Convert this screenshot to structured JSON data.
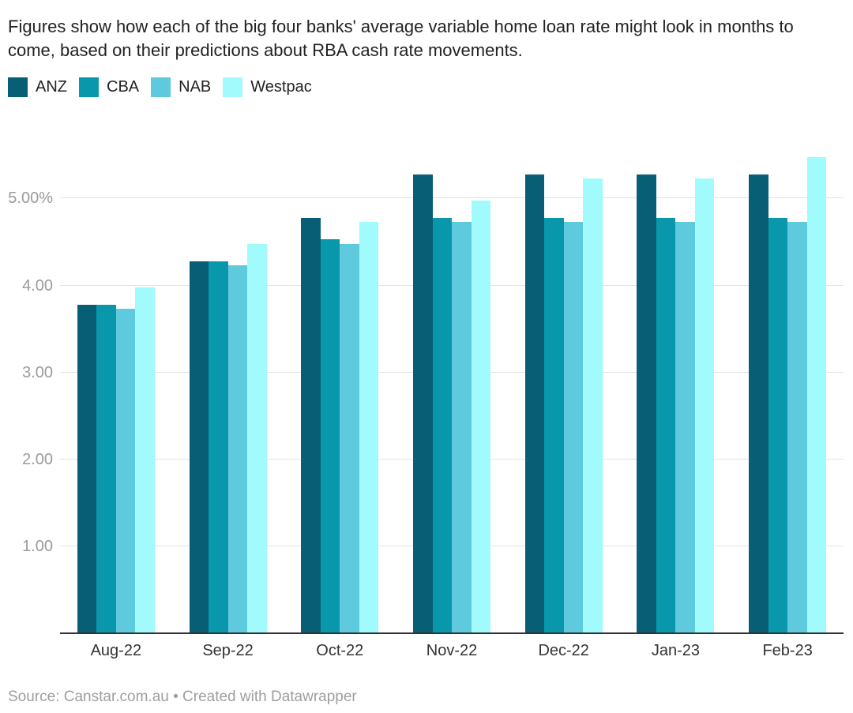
{
  "header": {
    "title": "Figures show how each of the big four banks' average variable home loan rate might look in months to come, based on their predictions about RBA cash rate movements."
  },
  "footer": {
    "source": "Source: Canstar.com.au • Created with Datawrapper"
  },
  "colors": {
    "anz": "#085e74",
    "cba": "#0998ab",
    "nab": "#5fc9dd",
    "westpac": "#a1fbfc",
    "gridline": "#e3e3e3",
    "axis_line": "#333333",
    "ytick_label": "#9b9b9b",
    "xtick_label": "#333333",
    "title_text": "#222222",
    "source_text": "#9e9e9e",
    "background": "#ffffff"
  },
  "chart_data": {
    "type": "bar",
    "title": "Figures show how each of the big four banks' average variable home loan rate might look in months to come, based on their predictions about RBA cash rate movements.",
    "xlabel": "",
    "ylabel": "",
    "unit": "%",
    "categories": [
      "Aug-22",
      "Sep-22",
      "Oct-22",
      "Nov-22",
      "Dec-22",
      "Jan-23",
      "Feb-23"
    ],
    "series": [
      {
        "name": "ANZ",
        "color": "#085e74",
        "values": [
          3.78,
          4.28,
          4.78,
          5.28,
          5.28,
          5.28,
          5.28
        ]
      },
      {
        "name": "CBA",
        "color": "#0998ab",
        "values": [
          3.78,
          4.28,
          4.53,
          4.78,
          4.78,
          4.78,
          4.78
        ]
      },
      {
        "name": "NAB",
        "color": "#5fc9dd",
        "values": [
          3.73,
          4.23,
          4.48,
          4.73,
          4.73,
          4.73,
          4.73
        ]
      },
      {
        "name": "Westpac",
        "color": "#a1fbfc",
        "values": [
          3.98,
          4.48,
          4.73,
          4.98,
          5.23,
          5.23,
          5.48
        ]
      }
    ],
    "yticks": [
      {
        "value": 1,
        "label": "1.00"
      },
      {
        "value": 2,
        "label": "2.00"
      },
      {
        "value": 3,
        "label": "3.00"
      },
      {
        "value": 4,
        "label": "4.00"
      },
      {
        "value": 5,
        "label": "5.00%"
      }
    ],
    "ylim": [
      0,
      5.54
    ],
    "grid": true,
    "legend_position": "top",
    "source": "Source: Canstar.com.au • Created with Datawrapper"
  }
}
